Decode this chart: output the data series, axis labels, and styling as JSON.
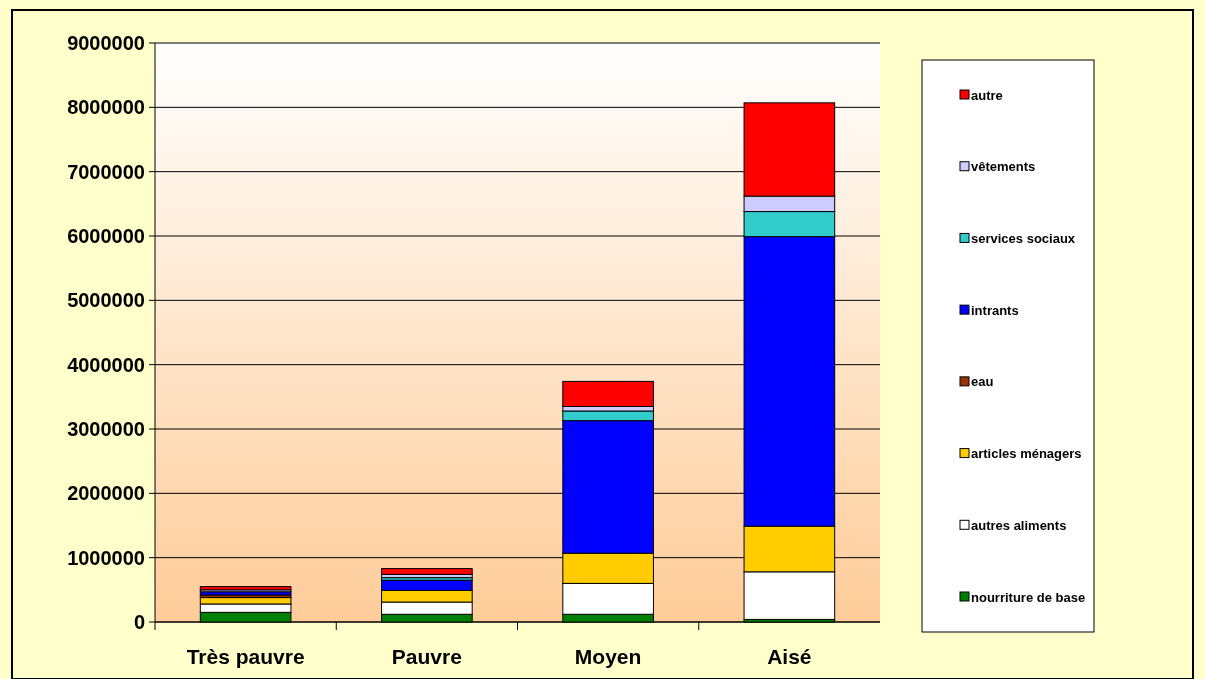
{
  "chart_data": {
    "type": "bar",
    "stacked": true,
    "categories": [
      "Très pauvre",
      "Pauvre",
      "Moyen",
      "Aisé"
    ],
    "series": [
      {
        "name": "nourriture de base",
        "color": "#008000",
        "values": [
          150000,
          120000,
          120000,
          40000
        ]
      },
      {
        "name": "autres aliments",
        "color": "#ffffff",
        "values": [
          130000,
          190000,
          480000,
          740000
        ]
      },
      {
        "name": "articles ménagers",
        "color": "#ffcc00",
        "values": [
          100000,
          180000,
          470000,
          710000
        ]
      },
      {
        "name": "eau",
        "color": "#993300",
        "values": [
          40000,
          null,
          null,
          null
        ]
      },
      {
        "name": "intrants",
        "color": "#0000ff",
        "values": [
          50000,
          160000,
          2060000,
          4500000
        ]
      },
      {
        "name": "services sociaux",
        "color": "#33cccc",
        "values": [
          null,
          40000,
          150000,
          390000
        ]
      },
      {
        "name": "vêtements",
        "color": "#ccccff",
        "values": [
          30000,
          50000,
          70000,
          240000
        ]
      },
      {
        "name": "autre",
        "color": "#ff0000",
        "values": [
          50000,
          90000,
          390000,
          1450000
        ]
      }
    ],
    "ylim": [
      0,
      9000000
    ],
    "yticks": [
      0,
      1000000,
      2000000,
      3000000,
      4000000,
      5000000,
      6000000,
      7000000,
      8000000,
      9000000
    ],
    "grid": "y",
    "legend": "right"
  }
}
